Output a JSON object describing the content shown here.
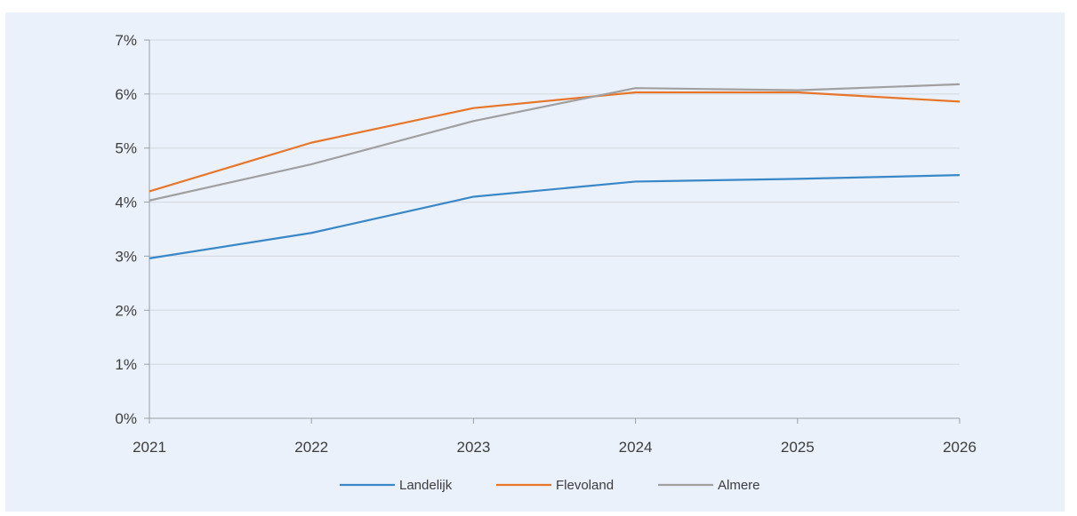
{
  "chart_data": {
    "type": "line",
    "x": [
      2021,
      2022,
      2023,
      2024,
      2025,
      2026
    ],
    "x_tick_labels": [
      "2021",
      "2022",
      "2023",
      "2024",
      "2025",
      "2026"
    ],
    "ylim": [
      0,
      0.07
    ],
    "y_ticks": [
      0,
      0.01,
      0.02,
      0.03,
      0.04,
      0.05,
      0.06,
      0.07
    ],
    "y_tick_labels": [
      "0%",
      "1%",
      "2%",
      "3%",
      "4%",
      "5%",
      "6%",
      "7%"
    ],
    "grid": true,
    "legend_position": "bottom",
    "series": [
      {
        "name": "Landelijk",
        "color": "#3a87c8",
        "values": [
          0.0296,
          0.0343,
          0.041,
          0.0438,
          0.0443,
          0.045
        ]
      },
      {
        "name": "Flevoland",
        "color": "#e8762a",
        "values": [
          0.042,
          0.051,
          0.0574,
          0.0603,
          0.0603,
          0.0586
        ]
      },
      {
        "name": "Almere",
        "color": "#a0a0a0",
        "values": [
          0.0403,
          0.047,
          0.055,
          0.0611,
          0.0607,
          0.0618
        ]
      }
    ]
  }
}
